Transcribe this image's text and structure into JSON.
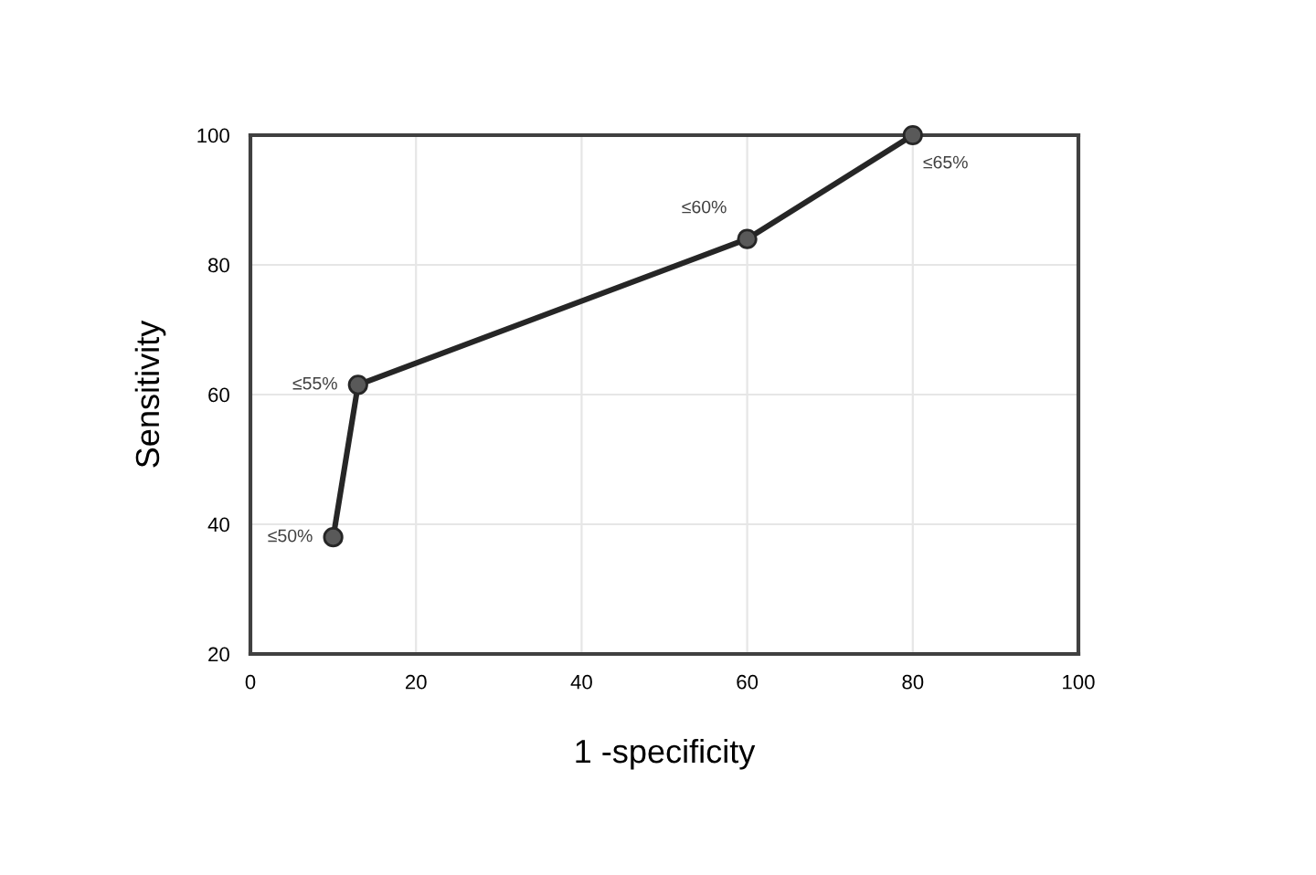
{
  "chart_data": {
    "type": "line",
    "xlabel": "1 -specificity",
    "ylabel": "Sensitivity",
    "x": [
      10,
      13,
      60,
      80
    ],
    "series": [
      {
        "color": "#262626",
        "values": [
          38,
          61.5,
          84,
          100
        ]
      }
    ],
    "xlim": [
      0,
      100
    ],
    "xticks": [
      0,
      20,
      40,
      60,
      80,
      100
    ],
    "ylim": [
      20,
      100
    ],
    "yticks": [
      20,
      40,
      60,
      80,
      100
    ],
    "grid": true,
    "marker": "circle",
    "line_style": "solid",
    "annotations": [
      {
        "text": "≤50%",
        "x": 10,
        "y": 38
      },
      {
        "text": "≤55%",
        "x": 13,
        "y": 61.5
      },
      {
        "text": "≤60%",
        "x": 60,
        "y": 84
      },
      {
        "text": "≤65%",
        "x": 80,
        "y": 100
      }
    ]
  }
}
